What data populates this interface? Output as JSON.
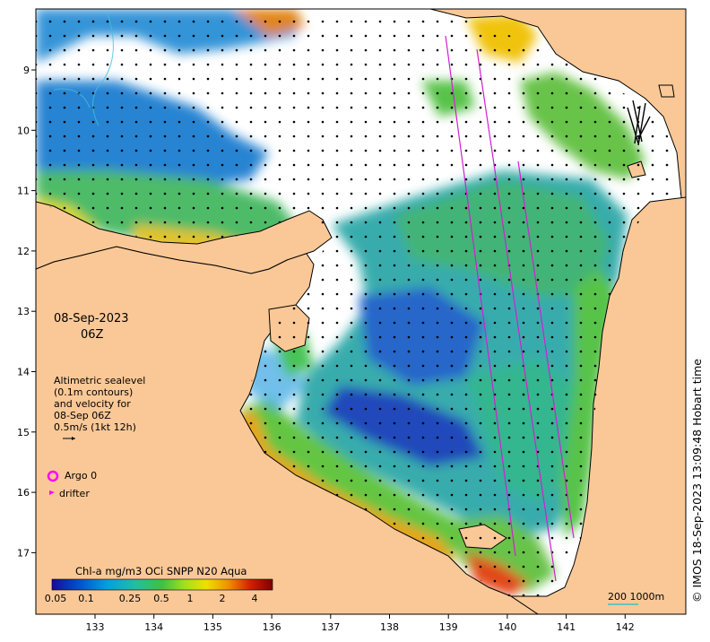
{
  "date": {
    "line1": "08-Sep-2023",
    "line2": "06Z"
  },
  "altimetry_note": [
    "Altimetric sealevel",
    "(0.1m contours)",
    "and velocity for",
    "08-Sep 06Z",
    "0.5m/s (1kt 12h)"
  ],
  "legend": {
    "argo": "Argo 0",
    "drifter": "drifter",
    "argo_color": "#ff00ff",
    "drifter_color": "#ff00ff"
  },
  "colorbar": {
    "title": "Chl-a mg/m3 OCi SNPP N20 Aqua",
    "ticks": [
      "0.05",
      "0.1",
      "0.25",
      "0.5",
      "1",
      "2",
      "4"
    ],
    "stops": [
      "#1a0a9a",
      "#0050d0",
      "#00a0e0",
      "#20c0a0",
      "#40c040",
      "#a0e020",
      "#f0e000",
      "#f09000",
      "#d02000",
      "#800000"
    ]
  },
  "axes": {
    "x_ticks": [
      "133",
      "134",
      "135",
      "136",
      "137",
      "138",
      "139",
      "140",
      "141",
      "142"
    ],
    "y_ticks": [
      "9",
      "10",
      "11",
      "12",
      "13",
      "14",
      "15",
      "16",
      "17"
    ]
  },
  "scale_bar": "200  1000m",
  "credit": "© IMOS 18-Sep-2023 13:09:48 Hobart time",
  "colors": {
    "land": "#fac896",
    "ocean_nodata": "#ffffff",
    "track": "#d020d0",
    "coastline": "#000000"
  }
}
